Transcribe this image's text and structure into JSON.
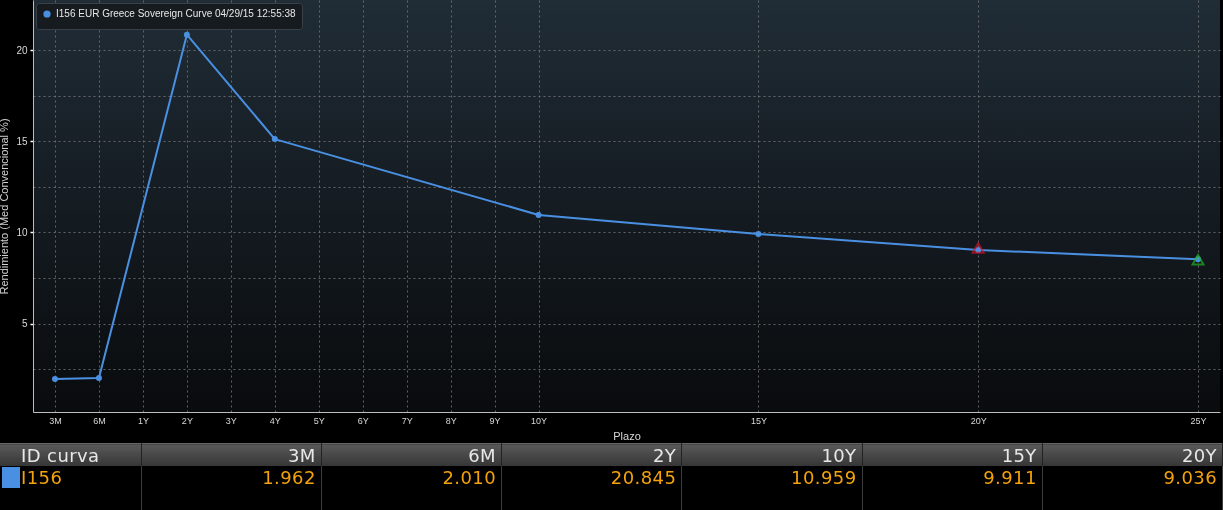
{
  "chart_data": {
    "type": "line",
    "xlabel": "Plazo",
    "ylabel": "Rendimiento (Med Convencional %)",
    "annotations": [
      "ID curva",
      "3M",
      "6M",
      "2Y",
      "10Y",
      "15Y",
      "20Y",
      "I156",
      "1.962",
      "2.010",
      "20.845",
      "10.959",
      "9.911",
      "9.036"
    ],
    "categories": [
      "3M",
      "6M",
      "1Y",
      "2Y",
      "3Y",
      "4Y",
      "5Y",
      "6Y",
      "7Y",
      "8Y",
      "9Y",
      "10Y",
      null,
      null,
      null,
      null,
      "15Y",
      null,
      null,
      null,
      null,
      "20Y",
      null,
      null,
      null,
      null,
      "25Y"
    ],
    "series": [
      {
        "name": "I156 EUR Greece Sovereign Curve 04/29/15 12:55:38",
        "color": "#4a90e2",
        "x": [
          "3M",
          "6M",
          "2Y",
          "4Y",
          "10Y",
          "15Y",
          "20Y",
          "25Y"
        ],
        "values": [
          1.962,
          2.01,
          20.845,
          15.12,
          10.959,
          9.911,
          9.036,
          8.53
        ]
      },
      {
        "type": "scatter",
        "color": "#d0142c",
        "x": [
          "20Y"
        ],
        "values": [
          9.15
        ],
        "marker": "triangle"
      },
      {
        "type": "scatter",
        "color": "#22b022",
        "x": [
          "25Y"
        ],
        "values": [
          8.5
        ],
        "marker": "triangle"
      }
    ],
    "ylim": [
      0.15,
      22.75
    ],
    "yticks": [
      {
        "value": 2.5,
        "label": null
      },
      5,
      {
        "value": 7.5,
        "label": null
      },
      10,
      {
        "value": 12.5,
        "label": null
      },
      15,
      {
        "value": 17.5,
        "label": null
      },
      20
    ],
    "grid": true,
    "legend": "top left",
    "marker": "circle"
  }
}
